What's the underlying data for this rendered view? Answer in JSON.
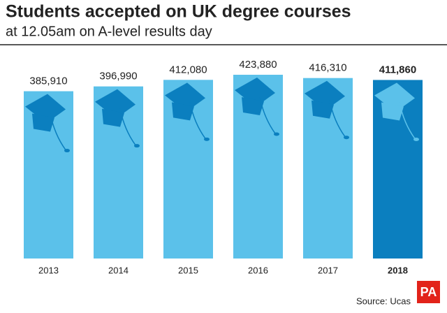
{
  "chart_data": {
    "type": "bar",
    "title": "Students accepted on UK degree courses",
    "subtitle": "at 12.05am on A-level results day",
    "categories": [
      "2013",
      "2014",
      "2015",
      "2016",
      "2017",
      "2018"
    ],
    "values": [
      385910,
      396990,
      412080,
      423880,
      416310,
      411860
    ],
    "value_labels": [
      "385,910",
      "396,990",
      "412,080",
      "423,880",
      "416,310",
      "411,860"
    ],
    "colors": [
      "#5bc1ea",
      "#5bc1ea",
      "#5bc1ea",
      "#5bc1ea",
      "#5bc1ea",
      "#0b7fbf"
    ],
    "source": "Source: Ucas",
    "logo": "PA"
  }
}
